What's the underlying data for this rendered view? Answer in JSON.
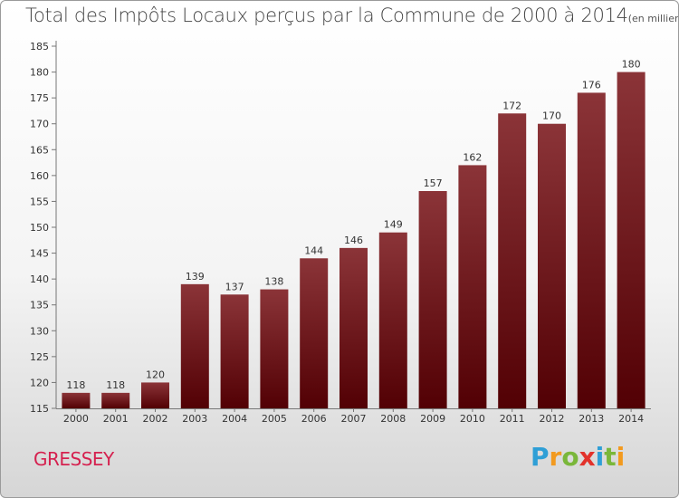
{
  "colors": {
    "bar_top": "#8b3438",
    "bar_bottom": "#520004",
    "commune": "#d5214f"
  },
  "chart_data": {
    "type": "bar",
    "title": "Total des Impôts Locaux perçus par la Commune de 2000 à 2014",
    "unit_label": "(en milliers d'€)",
    "categories": [
      "2000",
      "2001",
      "2002",
      "2003",
      "2004",
      "2005",
      "2006",
      "2007",
      "2008",
      "2009",
      "2010",
      "2011",
      "2012",
      "2013",
      "2014"
    ],
    "values": [
      118,
      118,
      120,
      139,
      137,
      138,
      144,
      146,
      149,
      157,
      162,
      172,
      170,
      176,
      180
    ],
    "ylim": [
      115,
      185
    ],
    "yticks": [
      115,
      120,
      125,
      130,
      135,
      140,
      145,
      150,
      155,
      160,
      165,
      170,
      175,
      180,
      185
    ],
    "xlabel": "",
    "ylabel": "",
    "grid": false
  },
  "footer": {
    "commune": "GRESSEY",
    "logo_letters": [
      {
        "ch": "P",
        "color": "#2f9fd6"
      },
      {
        "ch": "r",
        "color": "#f29a1f"
      },
      {
        "ch": "o",
        "color": "#7ab73a"
      },
      {
        "ch": "x",
        "color": "#e2322b"
      },
      {
        "ch": "i",
        "color": "#2f9fd6"
      },
      {
        "ch": "t",
        "color": "#7ab73a"
      },
      {
        "ch": "i",
        "color": "#f29a1f"
      }
    ]
  }
}
